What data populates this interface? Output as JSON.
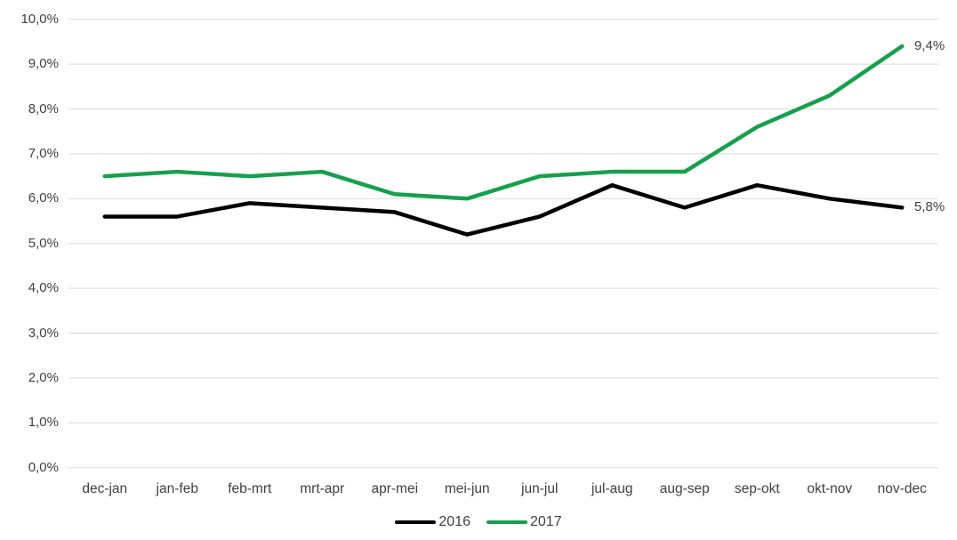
{
  "chart_data": {
    "type": "line",
    "categories": [
      "dec-jan",
      "jan-feb",
      "feb-mrt",
      "mrt-apr",
      "apr-mei",
      "mei-jun",
      "jun-jul",
      "jul-aug",
      "aug-sep",
      "sep-okt",
      "okt-nov",
      "nov-dec"
    ],
    "series": [
      {
        "name": "2016",
        "color": "#000000",
        "values": [
          5.6,
          5.6,
          5.9,
          5.8,
          5.7,
          5.2,
          5.6,
          6.3,
          5.8,
          6.3,
          6.0,
          5.8
        ],
        "end_label": "5,8%"
      },
      {
        "name": "2017",
        "color": "#16a04c",
        "values": [
          6.5,
          6.6,
          6.5,
          6.6,
          6.1,
          6.0,
          6.5,
          6.6,
          6.6,
          7.6,
          8.3,
          9.4
        ],
        "end_label": "9,4%"
      }
    ],
    "title": "",
    "xlabel": "",
    "ylabel": "",
    "ylim": [
      0,
      10
    ],
    "ytick_step": 1,
    "ytick_labels": [
      "0,0%",
      "1,0%",
      "2,0%",
      "3,0%",
      "4,0%",
      "5,0%",
      "6,0%",
      "7,0%",
      "8,0%",
      "9,0%",
      "10,0%"
    ],
    "grid": true,
    "gridline_color": "#d9d9d9",
    "legend_position": "bottom"
  }
}
